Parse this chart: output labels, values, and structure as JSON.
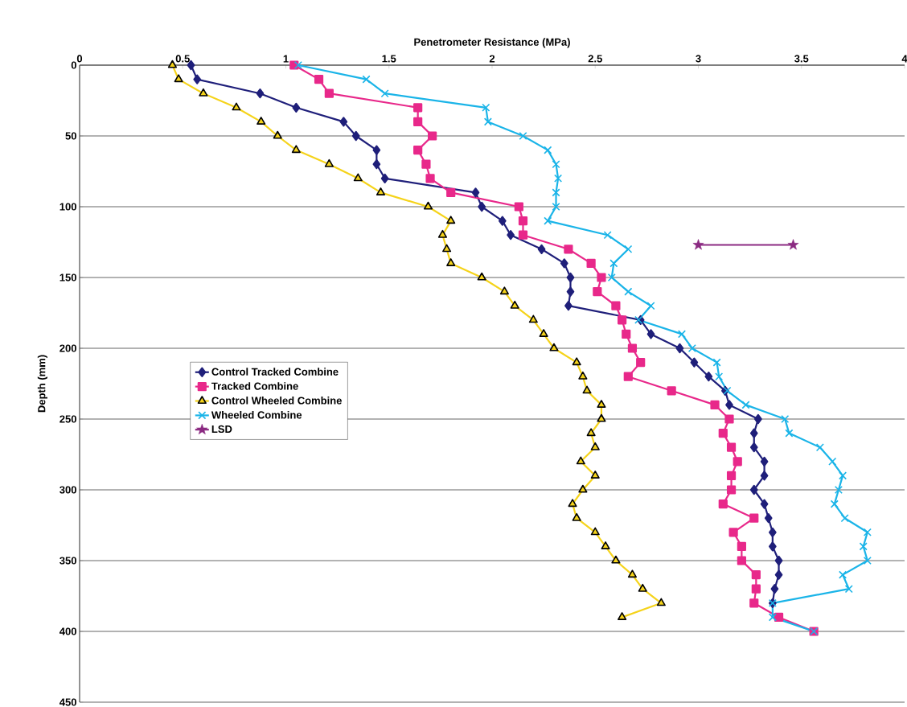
{
  "chart_data": {
    "type": "line",
    "xlabel": "Penetrometer Resistance (MPa)",
    "ylabel": "Depth (mm)",
    "xlim": [
      0,
      4
    ],
    "xticks": [
      0,
      0.5,
      1,
      1.5,
      2,
      2.5,
      3,
      3.5,
      4
    ],
    "ylim": [
      450,
      0
    ],
    "yticks": [
      0,
      50,
      100,
      150,
      200,
      250,
      300,
      350,
      400,
      450
    ],
    "grid": "y",
    "legend": "left",
    "series": [
      {
        "name": "Control Tracked Combine",
        "color": "#1f1f7a",
        "marker": "diamond",
        "x": [
          0.54,
          0.57,
          0.875,
          1.05,
          1.28,
          1.34,
          1.44,
          1.44,
          1.48,
          1.92,
          1.95,
          2.05,
          2.09,
          2.24,
          2.35,
          2.38,
          2.38,
          2.37,
          2.72,
          2.77,
          2.91,
          2.98,
          3.05,
          3.13,
          3.15,
          3.29,
          3.27,
          3.27,
          3.32,
          3.32,
          3.27,
          3.32,
          3.34,
          3.36,
          3.36,
          3.39,
          3.39,
          3.37,
          3.36
        ],
        "values": [
          0,
          10,
          20,
          30,
          40,
          50,
          60,
          70,
          80,
          90,
          100,
          110,
          120,
          130,
          140,
          150,
          160,
          170,
          180,
          190,
          200,
          210,
          220,
          230,
          240,
          250,
          260,
          270,
          280,
          290,
          300,
          310,
          320,
          330,
          340,
          350,
          360,
          370,
          380
        ]
      },
      {
        "name": "Tracked Combine",
        "color": "#e8288a",
        "marker": "square",
        "x": [
          1.04,
          1.16,
          1.21,
          1.64,
          1.64,
          1.71,
          1.64,
          1.68,
          1.7,
          1.8,
          2.13,
          2.15,
          2.15,
          2.37,
          2.48,
          2.53,
          2.51,
          2.6,
          2.63,
          2.65,
          2.68,
          2.72,
          2.66,
          2.87,
          3.08,
          3.15,
          3.12,
          3.16,
          3.19,
          3.16,
          3.16,
          3.12,
          3.27,
          3.17,
          3.21,
          3.21,
          3.28,
          3.28,
          3.27,
          3.39,
          3.56
        ],
        "values": [
          0,
          10,
          20,
          30,
          40,
          50,
          60,
          70,
          80,
          90,
          100,
          110,
          120,
          130,
          140,
          150,
          160,
          170,
          180,
          190,
          200,
          210,
          220,
          230,
          240,
          250,
          260,
          270,
          280,
          290,
          300,
          310,
          320,
          330,
          340,
          350,
          360,
          370,
          380,
          390,
          400
        ]
      },
      {
        "name": "Control Wheeled Combine",
        "color": "#f5d31a",
        "marker": "triangle",
        "x": [
          0.45,
          0.48,
          0.6,
          0.76,
          0.88,
          0.96,
          1.05,
          1.21,
          1.35,
          1.46,
          1.69,
          1.8,
          1.76,
          1.78,
          1.8,
          1.95,
          2.06,
          2.11,
          2.2,
          2.25,
          2.3,
          2.41,
          2.44,
          2.46,
          2.53,
          2.53,
          2.48,
          2.5,
          2.43,
          2.5,
          2.44,
          2.39,
          2.41,
          2.5,
          2.55,
          2.6,
          2.68,
          2.73,
          2.82,
          2.63
        ],
        "values": [
          0,
          10,
          20,
          30,
          40,
          50,
          60,
          70,
          80,
          90,
          100,
          110,
          120,
          130,
          140,
          150,
          160,
          170,
          180,
          190,
          200,
          210,
          220,
          230,
          240,
          250,
          260,
          270,
          280,
          290,
          300,
          310,
          320,
          330,
          340,
          350,
          360,
          370,
          380,
          390
        ]
      },
      {
        "name": "Wheeled Combine",
        "color": "#1ab4e8",
        "marker": "cross",
        "x": [
          1.06,
          1.39,
          1.48,
          1.97,
          1.98,
          2.15,
          2.27,
          2.31,
          2.32,
          2.31,
          2.31,
          2.27,
          2.56,
          2.66,
          2.59,
          2.58,
          2.66,
          2.77,
          2.71,
          2.92,
          2.97,
          3.09,
          3.1,
          3.14,
          3.23,
          3.42,
          3.44,
          3.59,
          3.65,
          3.7,
          3.68,
          3.66,
          3.71,
          3.82,
          3.8,
          3.82,
          3.7,
          3.73,
          3.36,
          3.36,
          3.56
        ],
        "values": [
          0,
          10,
          20,
          30,
          40,
          50,
          60,
          70,
          80,
          90,
          100,
          110,
          120,
          130,
          140,
          150,
          160,
          170,
          180,
          190,
          200,
          210,
          220,
          230,
          240,
          250,
          260,
          270,
          280,
          290,
          300,
          310,
          320,
          330,
          340,
          350,
          360,
          370,
          380,
          390,
          400
        ]
      },
      {
        "name": "LSD",
        "color": "#8b2a82",
        "marker": "star",
        "x": [
          3.0,
          3.46
        ],
        "values": [
          127,
          127
        ]
      }
    ]
  }
}
